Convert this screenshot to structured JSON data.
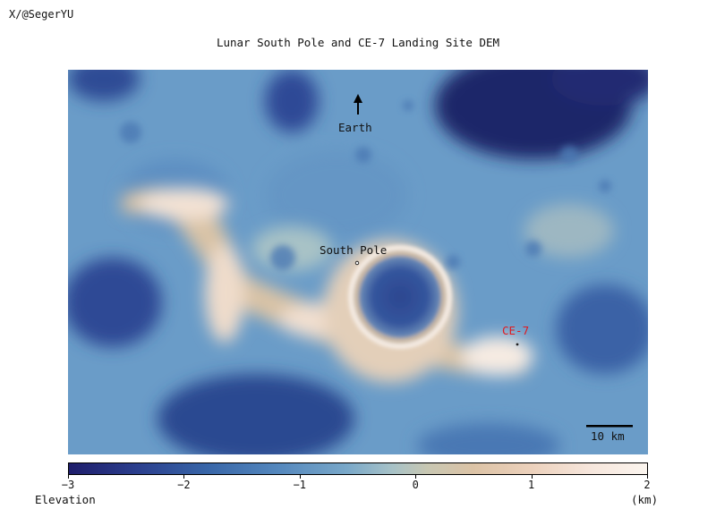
{
  "credit": "X/@SegerYU",
  "title": "Lunar South Pole and CE-7 Landing Site DEM",
  "map": {
    "labels": {
      "earth": "Earth",
      "south_pole": "South Pole",
      "ce7": "CE-7"
    },
    "scale_bar_label": "10 km",
    "ce7_color": "#e0191e",
    "arrow_icon": "north-arrow-icon"
  },
  "colorbar": {
    "label": "Elevation",
    "unit": "(km)",
    "min": -3,
    "max": 2,
    "ticks": [
      "-3",
      "-2",
      "-1",
      "0",
      "1",
      "2"
    ]
  }
}
